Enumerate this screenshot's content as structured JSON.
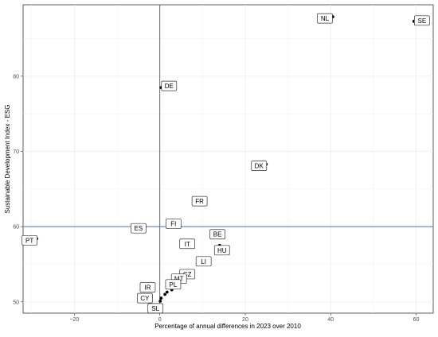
{
  "chart_data": {
    "type": "scatter",
    "title": "",
    "xlabel": "Percentage of annual differences in 2023 over 2010",
    "ylabel": "Sustainable Development Index - ESG",
    "xlim": [
      -32,
      64
    ],
    "ylim": [
      48.5,
      89.5
    ],
    "x_ticks": [
      -20,
      0,
      20,
      40,
      60
    ],
    "y_ticks": [
      50,
      60,
      70,
      80
    ],
    "x_tick_labels": [
      "−20",
      "0",
      "20",
      "40",
      "60"
    ],
    "y_tick_labels": [
      "50",
      "60",
      "70",
      "80"
    ],
    "grid": true,
    "reference_lines": {
      "x": 0,
      "y": 60
    },
    "colors": {
      "points": "#000000",
      "hline": "#4a6fbf",
      "vline": "#555555",
      "grid": "#ebebeb"
    },
    "points": [
      {
        "label": "SE",
        "x": 59.5,
        "y": 87.3
      },
      {
        "label": "NL",
        "x": 40.5,
        "y": 87.9
      },
      {
        "label": "DE",
        "x": 0.3,
        "y": 78.5
      },
      {
        "label": "DK",
        "x": 24.9,
        "y": 68.3
      },
      {
        "label": "FR",
        "x": 10.8,
        "y": 63.6
      },
      {
        "label": "FI",
        "x": 4.5,
        "y": 60.5
      },
      {
        "label": "ES",
        "x": -3.5,
        "y": 60.0
      },
      {
        "label": "PT",
        "x": -28.8,
        "y": 58.4
      },
      {
        "label": "BE",
        "x": 15.0,
        "y": 59.2
      },
      {
        "label": "IT",
        "x": 5.5,
        "y": 57.4
      },
      {
        "label": "HU",
        "x": 14.0,
        "y": 57.5
      },
      {
        "label": "LI",
        "x": 11.0,
        "y": 55.6
      },
      {
        "label": "CZ",
        "x": 7.0,
        "y": 54.0
      },
      {
        "label": "MT",
        "x": 5.6,
        "y": 53.5
      },
      {
        "label": "",
        "x": 5.0,
        "y": 52.6
      },
      {
        "label": "PL",
        "x": 3.5,
        "y": 51.9
      },
      {
        "label": "",
        "x": 2.8,
        "y": 51.6
      },
      {
        "label": "",
        "x": 1.7,
        "y": 51.3
      },
      {
        "label": "",
        "x": 1.2,
        "y": 51.0
      },
      {
        "label": "IR",
        "x": -1.9,
        "y": 51.5
      },
      {
        "label": "CY",
        "x": -2.0,
        "y": 50.6
      },
      {
        "label": "",
        "x": 0.3,
        "y": 50.5
      },
      {
        "label": "SL",
        "x": 0.1,
        "y": 50.1
      }
    ]
  }
}
